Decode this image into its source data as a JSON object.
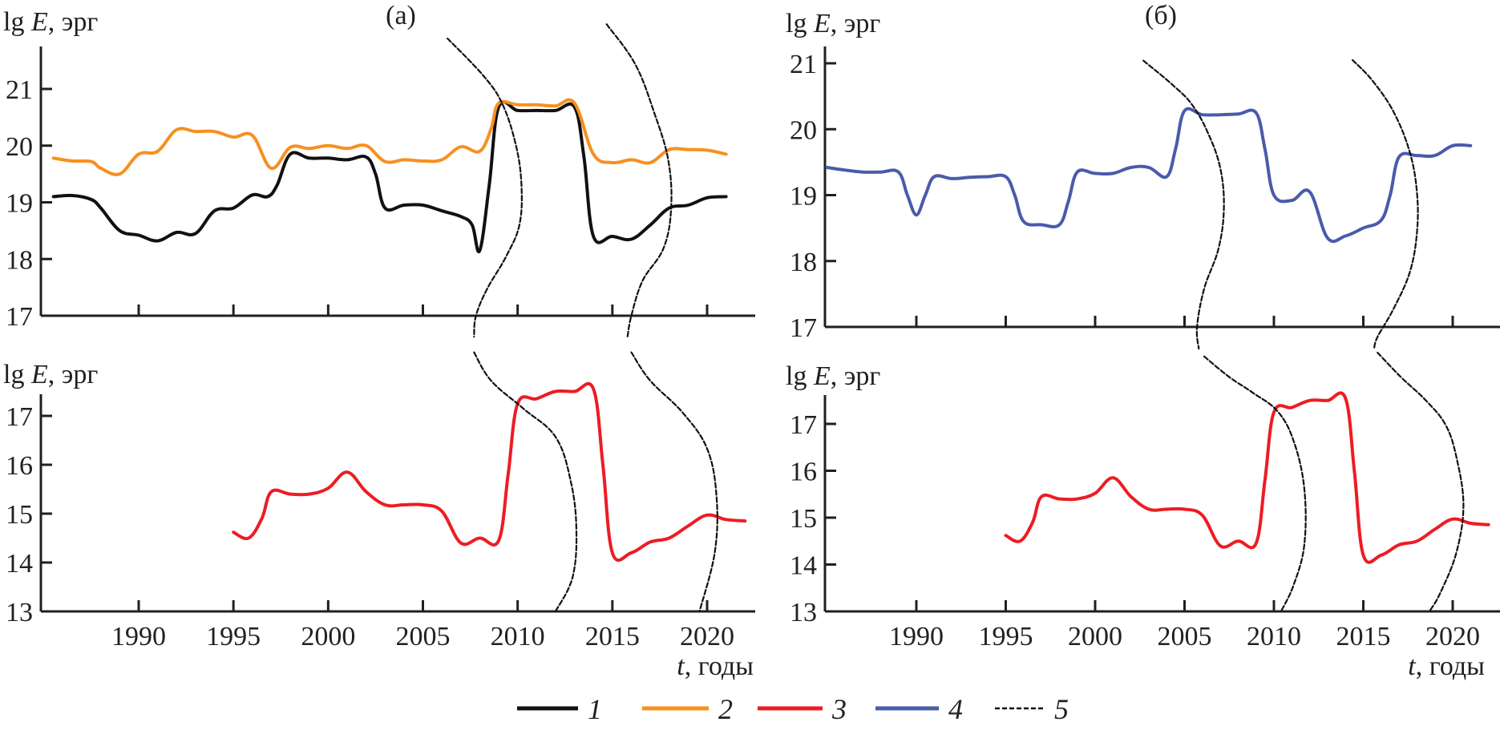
{
  "chart_data": [
    {
      "id": "top-left",
      "type": "line",
      "panel_label": "(а)",
      "ylabel": "lg E, эрг",
      "xlabel": "",
      "xlim": [
        1985,
        2022.5
      ],
      "ylim": [
        17,
        21.75
      ],
      "xticks": [
        1990,
        1995,
        2000,
        2005,
        2010,
        2015,
        2020
      ],
      "yticks": [
        17,
        18,
        19,
        20,
        21
      ],
      "show_xtick_labels": false,
      "series": [
        {
          "name": "1",
          "color": "#111111",
          "style": "solid",
          "x": [
            1985.5,
            1986.5,
            1987.5,
            1988,
            1989,
            1990,
            1991,
            1992,
            1993,
            1994,
            1995,
            1996,
            1996.8,
            1997.3,
            1998,
            1999,
            2000,
            2001,
            2002,
            2002.5,
            2003,
            2004,
            2005,
            2006,
            2007,
            2007.6,
            2008,
            2008.5,
            2009,
            2010,
            2011,
            2012,
            2013,
            2013.5,
            2014,
            2015,
            2016,
            2017,
            2018,
            2019,
            2020,
            2021
          ],
          "y": [
            19.1,
            19.12,
            19.05,
            18.9,
            18.5,
            18.42,
            18.32,
            18.47,
            18.45,
            18.85,
            18.9,
            19.13,
            19.1,
            19.3,
            19.85,
            19.78,
            19.78,
            19.75,
            19.8,
            19.5,
            18.9,
            18.95,
            18.95,
            18.85,
            18.75,
            18.6,
            18.15,
            19.3,
            20.68,
            20.62,
            20.62,
            20.62,
            20.68,
            19.8,
            18.4,
            18.4,
            18.35,
            18.6,
            18.9,
            18.95,
            19.08,
            19.1
          ]
        },
        {
          "name": "2",
          "color": "#f7901e",
          "style": "solid",
          "x": [
            1985.5,
            1986.5,
            1987.5,
            1988,
            1989,
            1990,
            1991,
            1992,
            1993,
            1994,
            1995,
            1996,
            1997,
            1998,
            1999,
            2000,
            2001,
            2002,
            2003,
            2004,
            2005,
            2006,
            2007,
            2008,
            2008.6,
            2009,
            2010,
            2011,
            2012,
            2013,
            2014,
            2015,
            2016,
            2017,
            2018,
            2019,
            2020,
            2021
          ],
          "y": [
            19.78,
            19.73,
            19.72,
            19.6,
            19.5,
            19.85,
            19.9,
            20.28,
            20.25,
            20.25,
            20.15,
            20.18,
            19.6,
            19.97,
            19.95,
            20.0,
            19.95,
            20.0,
            19.72,
            19.75,
            19.73,
            19.75,
            19.98,
            19.9,
            20.3,
            20.75,
            20.72,
            20.72,
            20.7,
            20.75,
            19.85,
            19.7,
            19.75,
            19.7,
            19.93,
            19.93,
            19.92,
            19.85
          ]
        },
        {
          "name": "5",
          "color": "#111111",
          "style": "dashed",
          "x": [
            2006.3,
            2008.2,
            2009.2,
            2009.9,
            2010.2,
            2010.1,
            2009.4,
            2008.4,
            2007.8,
            2007.7
          ],
          "y": [
            21.89,
            21.23,
            20.73,
            20.02,
            19.32,
            18.61,
            18.05,
            17.48,
            17.0,
            16.63
          ]
        },
        {
          "name": "5",
          "color": "#111111",
          "style": "dashed",
          "x": [
            2014.7,
            2016.2,
            2017.2,
            2017.95,
            2018.1,
            2017.7,
            2016.6,
            2016.0,
            2015.8
          ],
          "y": [
            22.14,
            21.44,
            20.59,
            19.74,
            18.89,
            18.19,
            17.62,
            17.0,
            16.63
          ]
        }
      ]
    },
    {
      "id": "bottom-left",
      "type": "line",
      "ylabel": "lg E, эрг",
      "xlabel": "t, годы",
      "xlim": [
        1985,
        2022.5
      ],
      "ylim": [
        13,
        17.44
      ],
      "xticks": [
        1990,
        1995,
        2000,
        2005,
        2010,
        2015,
        2020
      ],
      "xtick_labels": [
        "1990",
        "1995",
        "2000",
        "2005",
        "2010",
        "2015",
        "2020"
      ],
      "yticks": [
        13,
        14,
        15,
        16,
        17
      ],
      "show_xtick_labels": true,
      "series": [
        {
          "name": "3",
          "color": "#ed1c24",
          "style": "solid",
          "x": [
            1995,
            1995.8,
            1996.5,
            1997,
            1998,
            1999,
            2000,
            2001,
            2002,
            2003,
            2004,
            2005,
            2006,
            2007,
            2008,
            2009,
            2009.5,
            2010,
            2011,
            2012,
            2013,
            2014,
            2014.5,
            2015,
            2016,
            2017,
            2018,
            2019,
            2020,
            2021,
            2022
          ],
          "y": [
            14.62,
            14.5,
            14.9,
            15.45,
            15.4,
            15.4,
            15.52,
            15.85,
            15.45,
            15.18,
            15.18,
            15.18,
            15.05,
            14.4,
            14.5,
            14.45,
            15.8,
            17.25,
            17.35,
            17.5,
            17.5,
            17.55,
            16.0,
            14.2,
            14.2,
            14.42,
            14.5,
            14.75,
            14.97,
            14.88,
            14.85
          ]
        },
        {
          "name": "5",
          "color": "#111111",
          "style": "dashed",
          "x": [
            2007.7,
            2008.6,
            2010.3,
            2012.0,
            2012.8,
            2013.1,
            2012.9,
            2012.0
          ],
          "y": [
            18.3,
            17.72,
            17.15,
            16.57,
            15.67,
            14.69,
            13.7,
            13.0
          ]
        },
        {
          "name": "5",
          "color": "#111111",
          "style": "dashed",
          "x": [
            2016.0,
            2017.0,
            2018.7,
            2020.0,
            2020.5,
            2020.4,
            2019.6
          ],
          "y": [
            18.3,
            17.72,
            17.07,
            16.33,
            15.34,
            14.2,
            13.0
          ]
        }
      ]
    },
    {
      "id": "top-right",
      "type": "line",
      "panel_label": "(б)",
      "ylabel": "lg E, эрг",
      "xlabel": "",
      "xlim": [
        1985,
        2022.7
      ],
      "ylim": [
        17,
        21.25
      ],
      "xticks": [
        1990,
        1995,
        2000,
        2005,
        2010,
        2015,
        2020
      ],
      "yticks": [
        17,
        18,
        19,
        20,
        21
      ],
      "show_xtick_labels": false,
      "series": [
        {
          "name": "4",
          "color": "#4a5bab",
          "style": "solid",
          "x": [
            1985,
            1986,
            1987,
            1988,
            1989,
            1989.5,
            1990,
            1990.5,
            1991,
            1992,
            1993,
            1994,
            1995,
            1995.5,
            1996,
            1997,
            1998,
            1998.5,
            1999,
            2000,
            2001,
            2002,
            2003,
            2004,
            2004.5,
            2005,
            2006,
            2007,
            2008,
            2009,
            2009.5,
            2010,
            2011,
            2012,
            2013,
            2014,
            2015,
            2016,
            2016.5,
            2017,
            2018,
            2019,
            2020,
            2021
          ],
          "y": [
            19.42,
            19.38,
            19.35,
            19.35,
            19.35,
            19.0,
            18.7,
            19.0,
            19.28,
            19.25,
            19.27,
            19.28,
            19.28,
            19.0,
            18.6,
            18.55,
            18.55,
            18.9,
            19.35,
            19.33,
            19.33,
            19.42,
            19.42,
            19.28,
            19.7,
            20.28,
            20.22,
            20.22,
            20.23,
            20.25,
            19.7,
            19.0,
            18.92,
            19.05,
            18.35,
            18.38,
            18.5,
            18.62,
            19.0,
            19.58,
            19.6,
            19.6,
            19.75,
            19.75
          ]
        },
        {
          "name": "5",
          "color": "#111111",
          "style": "dashed",
          "x": [
            2002.7,
            2004.3,
            2005.4,
            2006.3,
            2007.0,
            2007.2,
            2006.9,
            2006.1,
            2005.7,
            2005.8
          ],
          "y": [
            21.04,
            20.68,
            20.38,
            19.95,
            19.41,
            18.8,
            18.19,
            17.58,
            17.0,
            16.67
          ]
        },
        {
          "name": "5",
          "color": "#111111",
          "style": "dashed",
          "x": [
            2014.4,
            2015.5,
            2016.7,
            2017.6,
            2018.0,
            2018.0,
            2017.6,
            2016.7,
            2015.8,
            2015.6
          ],
          "y": [
            21.05,
            20.74,
            20.26,
            19.65,
            19.04,
            18.43,
            17.83,
            17.28,
            16.85,
            16.67
          ]
        }
      ]
    },
    {
      "id": "bottom-right",
      "type": "line",
      "ylabel": "lg E, эрг",
      "xlabel": "t, годы",
      "xlim": [
        1985,
        2022.7
      ],
      "ylim": [
        13,
        17.6
      ],
      "xticks": [
        1990,
        1995,
        2000,
        2005,
        2010,
        2015,
        2020
      ],
      "xtick_labels": [
        "1990",
        "1995",
        "2000",
        "2005",
        "2010",
        "2015",
        "2020"
      ],
      "yticks": [
        13,
        14,
        15,
        16,
        17
      ],
      "show_xtick_labels": true,
      "series": [
        {
          "name": "3",
          "color": "#ed1c24",
          "style": "solid",
          "x": [
            1995,
            1995.8,
            1996.5,
            1997,
            1998,
            1999,
            2000,
            2001,
            2002,
            2003,
            2004,
            2005,
            2006,
            2007,
            2008,
            2009,
            2009.5,
            2010,
            2011,
            2012,
            2013,
            2014,
            2014.5,
            2015,
            2016,
            2017,
            2018,
            2019,
            2020,
            2021,
            2022
          ],
          "y": [
            14.62,
            14.5,
            14.9,
            15.45,
            15.4,
            15.4,
            15.52,
            15.85,
            15.45,
            15.18,
            15.18,
            15.18,
            15.05,
            14.4,
            14.5,
            14.45,
            15.8,
            17.25,
            17.35,
            17.5,
            17.5,
            17.55,
            16.0,
            14.2,
            14.2,
            14.42,
            14.5,
            14.75,
            14.97,
            14.88,
            14.85
          ]
        },
        {
          "name": "5",
          "color": "#111111",
          "style": "dashed",
          "x": [
            2006.1,
            2007.5,
            2008.8,
            2010.2,
            2011.1,
            2011.7,
            2011.7,
            2011.1,
            2010.4
          ],
          "y": [
            18.44,
            18.0,
            17.67,
            17.27,
            16.64,
            15.62,
            14.42,
            13.56,
            13.0
          ]
        },
        {
          "name": "5",
          "color": "#111111",
          "style": "dashed",
          "x": [
            2015.8,
            2017.1,
            2018.5,
            2019.6,
            2020.2,
            2020.6,
            2020.2,
            2019.3,
            2018.7
          ],
          "y": [
            18.52,
            18.0,
            17.5,
            16.98,
            16.3,
            15.27,
            14.25,
            13.39,
            13.0
          ]
        }
      ]
    }
  ],
  "legend": {
    "placement": "bottom-center",
    "items": [
      {
        "label": "1",
        "color": "#111111",
        "style": "solid"
      },
      {
        "label": "2",
        "color": "#f7901e",
        "style": "solid"
      },
      {
        "label": "3",
        "color": "#ed1c24",
        "style": "solid"
      },
      {
        "label": "4",
        "color": "#4a5bab",
        "style": "solid"
      },
      {
        "label": "5",
        "color": "#111111",
        "style": "dashed"
      }
    ]
  }
}
